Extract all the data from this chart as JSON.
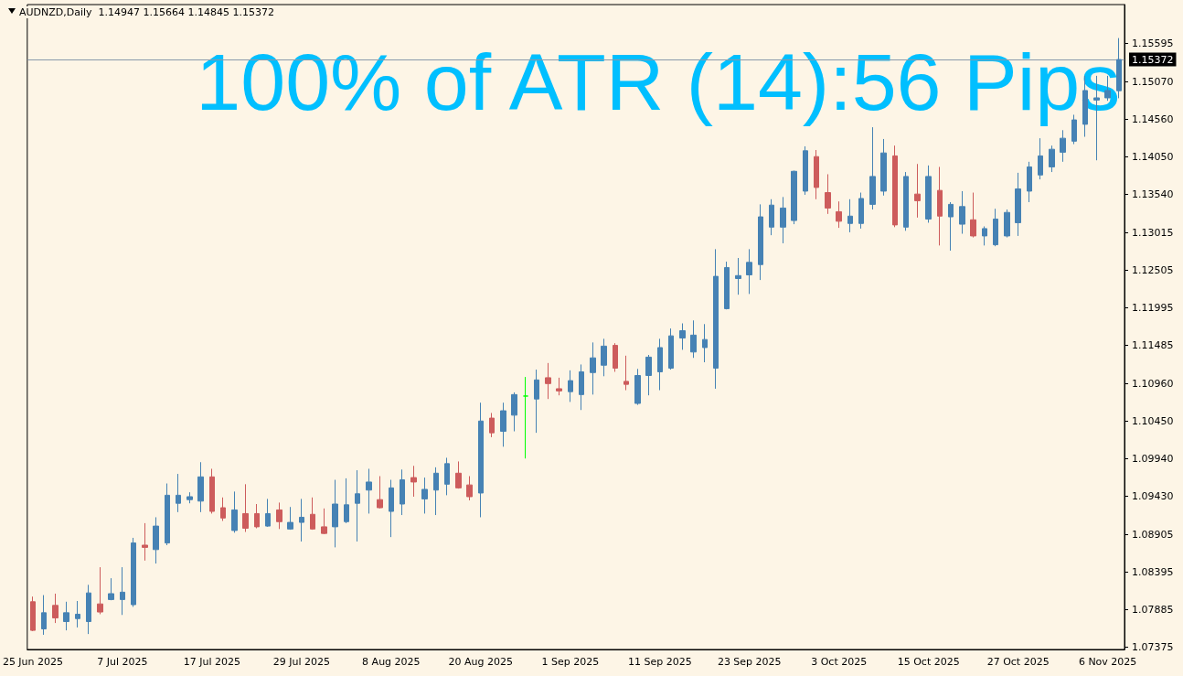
{
  "chart_data": {
    "type": "candlestick",
    "title": "AUDNZD,Daily  1.14947 1.15664 1.14845 1.15372",
    "annotations": [
      "100% of ATR (14):56 Pips"
    ],
    "categories": [
      "25 Jun 2025",
      null,
      null,
      null,
      null,
      null,
      null,
      null,
      "7 Jul 2025",
      null,
      null,
      null,
      null,
      null,
      null,
      null,
      "17 Jul 2025",
      null,
      null,
      null,
      null,
      null,
      null,
      null,
      "29 Jul 2025",
      null,
      null,
      null,
      null,
      null,
      null,
      null,
      "8 Aug 2025",
      null,
      null,
      null,
      null,
      null,
      null,
      null,
      "20 Aug 2025",
      null,
      null,
      null,
      null,
      null,
      null,
      null,
      "1 Sep 2025",
      null,
      null,
      null,
      null,
      null,
      null,
      null,
      "11 Sep 2025",
      null,
      null,
      null,
      null,
      null,
      null,
      null,
      "23 Sep 2025",
      null,
      null,
      null,
      null,
      null,
      null,
      null,
      "3 Oct 2025",
      null,
      null,
      null,
      null,
      null,
      null,
      null,
      "15 Oct 2025",
      null,
      null,
      null,
      null,
      null,
      null,
      null,
      "27 Oct 2025",
      null,
      null,
      null,
      null,
      null,
      null,
      null,
      "6 Nov 2025",
      null
    ],
    "ohlc": [
      [
        1.0799,
        1.0806,
        1.0759,
        1.076
      ],
      [
        1.0762,
        1.0808,
        1.0754,
        1.0784
      ],
      [
        1.0794,
        1.081,
        1.077,
        1.0777
      ],
      [
        1.0772,
        1.0799,
        1.076,
        1.0784
      ],
      [
        1.0776,
        1.08,
        1.0764,
        1.0782
      ],
      [
        1.0772,
        1.0822,
        1.0755,
        1.0811
      ],
      [
        1.0796,
        1.0846,
        1.0782,
        1.0785
      ],
      [
        1.0802,
        1.0831,
        1.0801,
        1.081
      ],
      [
        1.0802,
        1.0846,
        1.0781,
        1.0812
      ],
      [
        1.0795,
        1.0886,
        1.0792,
        1.0879
      ],
      [
        1.0876,
        1.0906,
        1.0855,
        1.0873
      ],
      [
        1.087,
        1.0914,
        1.0851,
        1.0902
      ],
      [
        1.0879,
        1.096,
        1.0876,
        1.0944
      ],
      [
        1.0933,
        1.0973,
        1.0921,
        1.0944
      ],
      [
        1.0938,
        1.0948,
        1.0933,
        1.0942
      ],
      [
        1.0936,
        1.0989,
        1.0921,
        1.0969
      ],
      [
        1.0969,
        1.098,
        1.0919,
        1.0922
      ],
      [
        1.0927,
        1.0941,
        1.0909,
        1.0913
      ],
      [
        1.0896,
        1.0949,
        1.0893,
        1.0924
      ],
      [
        1.0919,
        1.0959,
        1.0894,
        1.0899
      ],
      [
        1.0919,
        1.0932,
        1.0899,
        1.0901
      ],
      [
        1.0902,
        1.0939,
        1.0901,
        1.0919
      ],
      [
        1.0924,
        1.0934,
        1.0898,
        1.0908
      ],
      [
        1.0898,
        1.0928,
        1.0897,
        1.0907
      ],
      [
        1.0907,
        1.0939,
        1.0881,
        1.0914
      ],
      [
        1.0918,
        1.0941,
        1.0897,
        1.0898
      ],
      [
        1.0901,
        1.0926,
        1.0891,
        1.0892
      ],
      [
        1.0901,
        1.0965,
        1.0873,
        1.0932
      ],
      [
        1.0908,
        1.0967,
        1.0906,
        1.0931
      ],
      [
        1.0933,
        1.0978,
        1.0881,
        1.0946
      ],
      [
        1.0951,
        1.098,
        1.0919,
        1.0962
      ],
      [
        1.0938,
        1.097,
        1.0926,
        1.0927
      ],
      [
        1.0922,
        1.0965,
        1.0887,
        1.0954
      ],
      [
        1.0932,
        1.0979,
        1.0917,
        1.0965
      ],
      [
        1.0968,
        1.0984,
        1.0942,
        1.0962
      ],
      [
        1.0939,
        1.0968,
        1.0919,
        1.0952
      ],
      [
        1.0951,
        1.0982,
        1.0917,
        1.0974
      ],
      [
        1.0959,
        1.0995,
        1.0944,
        1.0987
      ],
      [
        1.0974,
        1.099,
        1.0953,
        1.0954
      ],
      [
        1.0958,
        1.097,
        1.0937,
        1.0942
      ],
      [
        1.0947,
        1.107,
        1.0914,
        1.1045
      ],
      [
        1.1049,
        1.1056,
        1.1023,
        1.1029
      ],
      [
        1.1031,
        1.107,
        1.101,
        1.1059
      ],
      [
        1.1053,
        1.1084,
        1.1031,
        1.1081
      ],
      [
        1.1079,
        1.1105,
        1.0994,
        1.1079
      ],
      [
        1.1075,
        1.1115,
        1.1029,
        1.1101
      ],
      [
        1.1104,
        1.1124,
        1.1075,
        1.1096
      ],
      [
        1.1089,
        1.1104,
        1.108,
        1.1086
      ],
      [
        1.1085,
        1.1114,
        1.1071,
        1.11
      ],
      [
        1.1081,
        1.1122,
        1.106,
        1.1112
      ],
      [
        1.1111,
        1.1152,
        1.1081,
        1.1131
      ],
      [
        1.1121,
        1.1157,
        1.1106,
        1.1147
      ],
      [
        1.1148,
        1.1151,
        1.1112,
        1.1117
      ],
      [
        1.1099,
        1.1134,
        1.1087,
        1.1095
      ],
      [
        1.1069,
        1.1116,
        1.1067,
        1.1107
      ],
      [
        1.1107,
        1.1135,
        1.108,
        1.1132
      ],
      [
        1.1112,
        1.1157,
        1.1087,
        1.1145
      ],
      [
        1.1117,
        1.1171,
        1.1115,
        1.1161
      ],
      [
        1.1158,
        1.1178,
        1.1142,
        1.1168
      ],
      [
        1.1139,
        1.1182,
        1.1131,
        1.1162
      ],
      [
        1.1145,
        1.1177,
        1.1125,
        1.1156
      ],
      [
        1.1117,
        1.1279,
        1.1089,
        1.1242
      ],
      [
        1.1198,
        1.1262,
        1.1197,
        1.1254
      ],
      [
        1.1239,
        1.1267,
        1.1217,
        1.1243
      ],
      [
        1.1244,
        1.1279,
        1.1218,
        1.1261
      ],
      [
        1.1258,
        1.134,
        1.1237,
        1.1323
      ],
      [
        1.1309,
        1.1347,
        1.1298,
        1.1339
      ],
      [
        1.1309,
        1.135,
        1.1287,
        1.1335
      ],
      [
        1.1318,
        1.1386,
        1.1313,
        1.1385
      ],
      [
        1.1358,
        1.1419,
        1.1353,
        1.1413
      ],
      [
        1.1405,
        1.1414,
        1.1347,
        1.1363
      ],
      [
        1.1356,
        1.1381,
        1.1327,
        1.1335
      ],
      [
        1.133,
        1.1344,
        1.1308,
        1.1317
      ],
      [
        1.1314,
        1.1347,
        1.1302,
        1.1324
      ],
      [
        1.1314,
        1.1356,
        1.1307,
        1.1348
      ],
      [
        1.134,
        1.1445,
        1.1333,
        1.1378
      ],
      [
        1.1358,
        1.1429,
        1.1352,
        1.141
      ],
      [
        1.1406,
        1.142,
        1.1309,
        1.1312
      ],
      [
        1.1309,
        1.1384,
        1.1304,
        1.1378
      ],
      [
        1.1354,
        1.1395,
        1.1322,
        1.1345
      ],
      [
        1.132,
        1.1393,
        1.1315,
        1.1378
      ],
      [
        1.1359,
        1.1391,
        1.1284,
        1.1324
      ],
      [
        1.1323,
        1.1343,
        1.1277,
        1.134
      ],
      [
        1.1313,
        1.1358,
        1.13,
        1.1337
      ],
      [
        1.1319,
        1.1356,
        1.1295,
        1.1297
      ],
      [
        1.1297,
        1.131,
        1.1284,
        1.1307
      ],
      [
        1.1285,
        1.1334,
        1.1283,
        1.132
      ],
      [
        1.1297,
        1.1333,
        1.1295,
        1.1329
      ],
      [
        1.1315,
        1.1383,
        1.1297,
        1.1361
      ],
      [
        1.1358,
        1.1398,
        1.1343,
        1.1391
      ],
      [
        1.138,
        1.143,
        1.1374,
        1.1406
      ],
      [
        1.1391,
        1.142,
        1.1384,
        1.1415
      ],
      [
        1.1411,
        1.1441,
        1.1398,
        1.143
      ],
      [
        1.1426,
        1.1462,
        1.1422,
        1.1455
      ],
      [
        1.1449,
        1.1515,
        1.1432,
        1.1495
      ],
      [
        1.1482,
        1.1515,
        1.14,
        1.1485
      ],
      [
        1.1485,
        1.1515,
        1.1481,
        1.1495
      ],
      [
        1.14947,
        1.15664,
        1.14845,
        1.15372
      ]
    ],
    "colors": [
      "#cd5c5c",
      "#4682b4",
      "#cd5c5c",
      "#4682b4",
      "#4682b4",
      "#4682b4",
      "#cd5c5c",
      "#4682b4",
      "#4682b4",
      "#4682b4",
      "#cd5c5c",
      "#4682b4",
      "#4682b4",
      "#4682b4",
      "#4682b4",
      "#4682b4",
      "#cd5c5c",
      "#cd5c5c",
      "#4682b4",
      "#cd5c5c",
      "#cd5c5c",
      "#4682b4",
      "#cd5c5c",
      "#4682b4",
      "#4682b4",
      "#cd5c5c",
      "#cd5c5c",
      "#4682b4",
      "#4682b4",
      "#4682b4",
      "#4682b4",
      "#cd5c5c",
      "#4682b4",
      "#4682b4",
      "#cd5c5c",
      "#4682b4",
      "#4682b4",
      "#4682b4",
      "#cd5c5c",
      "#cd5c5c",
      "#4682b4",
      "#cd5c5c",
      "#4682b4",
      "#4682b4",
      "#00ff00",
      "#4682b4",
      "#cd5c5c",
      "#cd5c5c",
      "#4682b4",
      "#4682b4",
      "#4682b4",
      "#4682b4",
      "#cd5c5c",
      "#cd5c5c",
      "#4682b4",
      "#4682b4",
      "#4682b4",
      "#4682b4",
      "#4682b4",
      "#4682b4",
      "#4682b4",
      "#4682b4",
      "#4682b4",
      "#4682b4",
      "#4682b4",
      "#4682b4",
      "#4682b4",
      "#4682b4",
      "#4682b4",
      "#4682b4",
      "#cd5c5c",
      "#cd5c5c",
      "#cd5c5c",
      "#4682b4",
      "#4682b4",
      "#4682b4",
      "#4682b4",
      "#cd5c5c",
      "#4682b4",
      "#cd5c5c",
      "#4682b4",
      "#cd5c5c",
      "#4682b4",
      "#4682b4",
      "#cd5c5c",
      "#4682b4",
      "#4682b4",
      "#4682b4",
      "#4682b4",
      "#4682b4",
      "#4682b4",
      "#4682b4",
      "#4682b4",
      "#4682b4",
      "#4682b4",
      "#4682b4",
      "#4682b4",
      "#4682b4"
    ],
    "ylim": [
      1.0734,
      1.1612
    ],
    "yticks": [
      {
        "value": 1.15595,
        "label": "1.15595"
      },
      {
        "value": 1.1507,
        "label": "1.15070"
      },
      {
        "value": 1.1456,
        "label": "1.14560"
      },
      {
        "value": 1.1405,
        "label": "1.14050"
      },
      {
        "value": 1.1354,
        "label": "1.13540"
      },
      {
        "value": 1.13015,
        "label": "1.13015"
      },
      {
        "value": 1.12505,
        "label": "1.12505"
      },
      {
        "value": 1.11995,
        "label": "1.11995"
      },
      {
        "value": 1.11485,
        "label": "1.11485"
      },
      {
        "value": 1.1096,
        "label": "1.10960"
      },
      {
        "value": 1.1045,
        "label": "1.10450"
      },
      {
        "value": 1.0994,
        "label": "1.09940"
      },
      {
        "value": 1.0943,
        "label": "1.09430"
      },
      {
        "value": 1.08905,
        "label": "1.08905"
      },
      {
        "value": 1.08395,
        "label": "1.08395"
      },
      {
        "value": 1.07885,
        "label": "1.07885"
      },
      {
        "value": 1.07375,
        "label": "1.07375"
      }
    ],
    "ref_lines": [
      {
        "axis": "y",
        "value": 1.15372,
        "label": "1.15372",
        "color": "#8899aa"
      }
    ],
    "grid": false
  }
}
